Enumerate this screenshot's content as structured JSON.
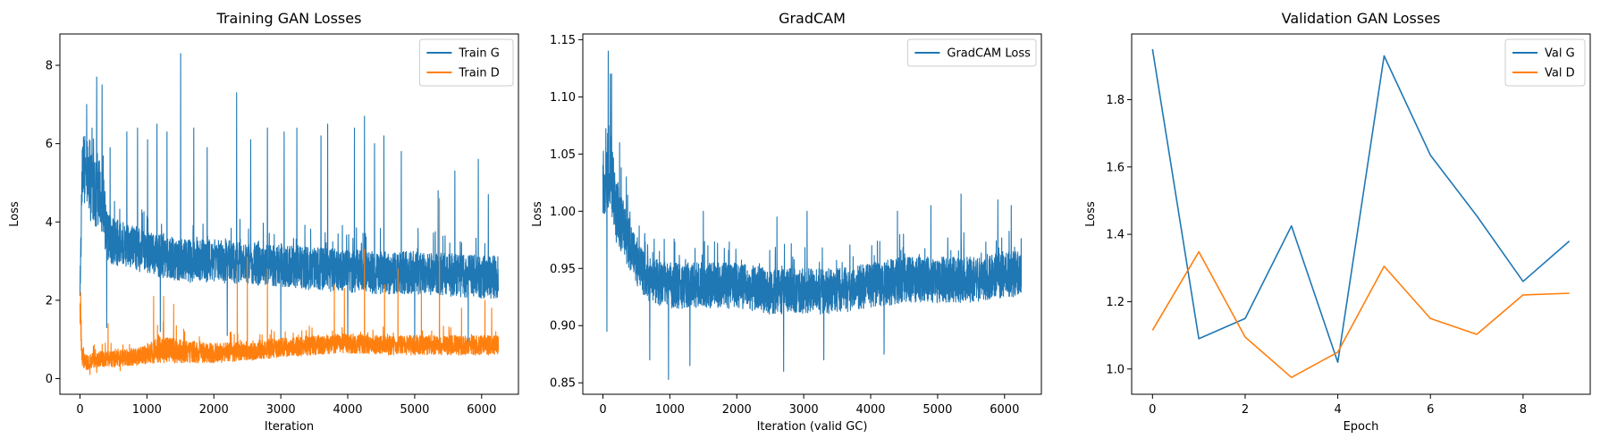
{
  "chart_data": [
    {
      "type": "line",
      "title": "Training GAN Losses",
      "xlabel": "Iteration",
      "ylabel": "Loss",
      "xlim": [
        -300,
        6550
      ],
      "ylim": [
        -0.4,
        8.8
      ],
      "xticks": [
        0,
        1000,
        2000,
        3000,
        4000,
        5000,
        6000
      ],
      "yticks": [
        0,
        2,
        4,
        6,
        8
      ],
      "legend": "top-right",
      "grid": false,
      "series": [
        {
          "name": "Train G",
          "color": "#1f77b4",
          "noisy": true,
          "x": [
            0,
            30,
            60,
            100,
            150,
            200,
            250,
            300,
            350,
            400,
            500,
            700,
            1000,
            1300,
            1600,
            2000,
            2500,
            3000,
            3500,
            4000,
            4500,
            5000,
            5500,
            6000,
            6250
          ],
          "center": [
            2.0,
            5.2,
            5.4,
            5.3,
            4.8,
            5.0,
            4.6,
            4.7,
            4.5,
            3.6,
            3.5,
            3.4,
            3.2,
            3.1,
            3.0,
            3.0,
            2.95,
            2.9,
            2.8,
            2.75,
            2.7,
            2.7,
            2.65,
            2.6,
            2.6
          ],
          "spread": [
            0.4,
            0.8,
            0.9,
            0.9,
            0.9,
            0.9,
            0.9,
            0.9,
            0.9,
            0.7,
            0.6,
            0.55,
            0.55,
            0.55,
            0.55,
            0.55,
            0.55,
            0.55,
            0.55,
            0.55,
            0.55,
            0.55,
            0.55,
            0.55,
            0.55
          ],
          "spikes": [
            [
              100,
              7.0
            ],
            [
              180,
              6.4
            ],
            [
              250,
              7.7
            ],
            [
              330,
              7.5
            ],
            [
              450,
              5.9
            ],
            [
              700,
              6.3
            ],
            [
              860,
              6.4
            ],
            [
              1010,
              6.1
            ],
            [
              1150,
              6.5
            ],
            [
              1300,
              6.3
            ],
            [
              1505,
              8.3
            ],
            [
              1700,
              6.4
            ],
            [
              1900,
              5.9
            ],
            [
              2340,
              7.3
            ],
            [
              2550,
              6.1
            ],
            [
              2800,
              6.4
            ],
            [
              3050,
              6.3
            ],
            [
              3240,
              6.4
            ],
            [
              3600,
              6.2
            ],
            [
              3700,
              6.5
            ],
            [
              4100,
              6.4
            ],
            [
              4250,
              6.7
            ],
            [
              4400,
              6.0
            ],
            [
              4540,
              6.2
            ],
            [
              4800,
              5.8
            ],
            [
              5000,
              5.5
            ],
            [
              5350,
              4.8
            ],
            [
              5600,
              5.3
            ],
            [
              5800,
              5.3
            ],
            [
              5950,
              5.6
            ],
            [
              6100,
              4.7
            ]
          ],
          "dips": [
            [
              400,
              1.3
            ],
            [
              1200,
              1.2
            ],
            [
              2200,
              1.1
            ],
            [
              3000,
              1.0
            ],
            [
              4000,
              1.0
            ],
            [
              5000,
              0.8
            ],
            [
              5800,
              0.9
            ]
          ]
        },
        {
          "name": "Train D",
          "color": "#ff7f0e",
          "noisy": true,
          "x": [
            0,
            30,
            60,
            100,
            200,
            300,
            500,
            800,
            1000,
            1200,
            1500,
            2000,
            2500,
            3000,
            3500,
            4000,
            4500,
            5000,
            5500,
            6000,
            6250
          ],
          "center": [
            1.8,
            0.6,
            0.45,
            0.4,
            0.45,
            0.5,
            0.5,
            0.55,
            0.6,
            0.75,
            0.7,
            0.65,
            0.7,
            0.8,
            0.85,
            0.9,
            0.85,
            0.85,
            0.85,
            0.85,
            0.85
          ],
          "spread": [
            0.4,
            0.25,
            0.2,
            0.2,
            0.2,
            0.2,
            0.2,
            0.22,
            0.25,
            0.35,
            0.3,
            0.25,
            0.25,
            0.25,
            0.25,
            0.25,
            0.25,
            0.25,
            0.25,
            0.25,
            0.25
          ],
          "spikes": [
            [
              10,
              2.2
            ],
            [
              420,
              1.4
            ],
            [
              1100,
              2.1
            ],
            [
              1250,
              2.1
            ],
            [
              1400,
              1.9
            ],
            [
              2350,
              2.9
            ],
            [
              2500,
              3.1
            ],
            [
              2800,
              2.8
            ],
            [
              3800,
              2.4
            ],
            [
              3950,
              2.3
            ],
            [
              4250,
              3.3
            ],
            [
              4550,
              2.4
            ],
            [
              4750,
              2.8
            ],
            [
              5100,
              2.5
            ],
            [
              5370,
              4.6
            ],
            [
              5700,
              1.8
            ],
            [
              6050,
              2.0
            ],
            [
              6150,
              1.8
            ]
          ],
          "dips": [
            [
              150,
              0.1
            ],
            [
              250,
              0.15
            ],
            [
              600,
              0.2
            ]
          ]
        }
      ]
    },
    {
      "type": "line",
      "title": "GradCAM",
      "xlabel": "Iteration (valid GC)",
      "ylabel": "Loss",
      "xlim": [
        -300,
        6550
      ],
      "ylim": [
        0.84,
        1.155
      ],
      "xticks": [
        0,
        1000,
        2000,
        3000,
        4000,
        5000,
        6000
      ],
      "yticks": [
        0.85,
        0.9,
        0.95,
        1.0,
        1.05,
        1.1,
        1.15
      ],
      "tick_decimals": 2,
      "legend": "top-right",
      "grid": false,
      "series": [
        {
          "name": "GradCAM Loss",
          "color": "#1f77b4",
          "noisy": true,
          "x": [
            0,
            50,
            100,
            150,
            200,
            300,
            400,
            500,
            700,
            1000,
            1500,
            2000,
            2500,
            3000,
            3500,
            4000,
            4500,
            5000,
            5500,
            6000,
            6250
          ],
          "center": [
            1.02,
            1.03,
            1.04,
            1.02,
            1.0,
            0.985,
            0.97,
            0.955,
            0.94,
            0.935,
            0.935,
            0.935,
            0.93,
            0.93,
            0.93,
            0.935,
            0.94,
            0.94,
            0.94,
            0.945,
            0.945
          ],
          "spread": [
            0.025,
            0.03,
            0.035,
            0.03,
            0.03,
            0.025,
            0.022,
            0.02,
            0.02,
            0.02,
            0.02,
            0.02,
            0.02,
            0.02,
            0.02,
            0.02,
            0.02,
            0.02,
            0.02,
            0.02,
            0.02
          ],
          "spikes": [
            [
              80,
              1.14
            ],
            [
              110,
              1.12
            ],
            [
              130,
              1.12
            ],
            [
              250,
              1.06
            ],
            [
              350,
              1.03
            ],
            [
              1500,
              1.0
            ],
            [
              2600,
              0.995
            ],
            [
              3050,
              1.0
            ],
            [
              4400,
              1.0
            ],
            [
              4900,
              1.005
            ],
            [
              5350,
              1.015
            ],
            [
              5900,
              1.01
            ],
            [
              6100,
              1.005
            ]
          ],
          "dips": [
            [
              60,
              0.895
            ],
            [
              700,
              0.87
            ],
            [
              980,
              0.853
            ],
            [
              1300,
              0.865
            ],
            [
              2700,
              0.86
            ],
            [
              3300,
              0.87
            ],
            [
              4200,
              0.875
            ]
          ]
        }
      ]
    },
    {
      "type": "line",
      "title": "Validation GAN Losses",
      "xlabel": "Epoch",
      "ylabel": "Loss",
      "xlim": [
        -0.45,
        9.45
      ],
      "ylim": [
        0.925,
        1.995
      ],
      "xticks": [
        0,
        2,
        4,
        6,
        8
      ],
      "yticks": [
        1.0,
        1.2,
        1.4,
        1.6,
        1.8
      ],
      "tick_decimals": 1,
      "legend": "top-right",
      "grid": false,
      "series": [
        {
          "name": "Val G",
          "color": "#1f77b4",
          "noisy": false,
          "x": [
            0,
            1,
            2,
            3,
            4,
            5,
            6,
            7,
            8,
            9
          ],
          "y": [
            1.95,
            1.09,
            1.15,
            1.425,
            1.02,
            1.93,
            1.635,
            1.455,
            1.26,
            1.38
          ]
        },
        {
          "name": "Val D",
          "color": "#ff7f0e",
          "noisy": false,
          "x": [
            0,
            1,
            2,
            3,
            4,
            5,
            6,
            7,
            8,
            9
          ],
          "y": [
            1.115,
            1.348,
            1.095,
            0.975,
            1.05,
            1.305,
            1.15,
            1.103,
            1.22,
            1.225
          ]
        }
      ]
    }
  ]
}
